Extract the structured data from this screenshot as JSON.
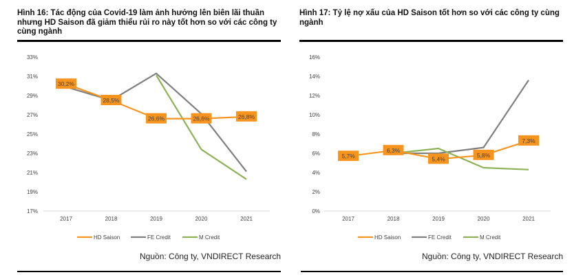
{
  "figures": [
    {
      "title": "Hình 16: Tác động của Covid-19 làm ảnh hưởng lên biên lãi thuần nhưng HD Saison đã giảm thiểu rủi ro này tốt hơn so với các công ty cùng ngành",
      "source": "Nguồn: Công ty, VNDIRECT Research"
    },
    {
      "title": "Hình 17: Tỷ lệ nợ xấu của HD Saison tốt hơn so với các công ty cùng ngành",
      "source": "Nguồn: Công ty, VNDIRECT Research"
    }
  ],
  "chart_data": [
    {
      "type": "line",
      "categories": [
        "2017",
        "2018",
        "2019",
        "2020",
        "2021"
      ],
      "ylim": [
        17,
        33
      ],
      "yticks": [
        "17%",
        "19%",
        "21%",
        "23%",
        "25%",
        "27%",
        "29%",
        "31%",
        "33%"
      ],
      "grid": false,
      "legend": "bottom",
      "series": [
        {
          "name": "HD Saison",
          "color": "#F7941D",
          "values": [
            30.2,
            28.5,
            26.6,
            26.6,
            26.8
          ],
          "labels": [
            "30,2%",
            "28,5%",
            "26,6%",
            "26,6%",
            "26,8%"
          ]
        },
        {
          "name": "FE Credit",
          "color": "#7F7F7F",
          "values": [
            29.9,
            28.5,
            31.3,
            27.1,
            21.1
          ]
        },
        {
          "name": "M Credit",
          "color": "#8DB255",
          "values": [
            null,
            null,
            31.1,
            23.4,
            20.3
          ]
        }
      ]
    },
    {
      "type": "line",
      "categories": [
        "2017",
        "2018",
        "2019",
        "2020",
        "2021"
      ],
      "ylim": [
        0,
        16
      ],
      "yticks": [
        "0%",
        "2%",
        "4%",
        "6%",
        "8%",
        "10%",
        "12%",
        "14%",
        "16%"
      ],
      "grid": false,
      "legend": "bottom",
      "series": [
        {
          "name": "HD Saison",
          "color": "#F7941D",
          "values": [
            5.7,
            6.3,
            5.4,
            5.8,
            7.3
          ],
          "labels": [
            "5,7%",
            "6,3%",
            "5,4%",
            "5,8%",
            "7,3%"
          ]
        },
        {
          "name": "FE Credit",
          "color": "#7F7F7F",
          "values": [
            null,
            6.0,
            6.0,
            6.6,
            13.6
          ]
        },
        {
          "name": "M Credit",
          "color": "#8DB255",
          "values": [
            null,
            6.0,
            6.5,
            4.5,
            4.3
          ]
        }
      ]
    }
  ]
}
